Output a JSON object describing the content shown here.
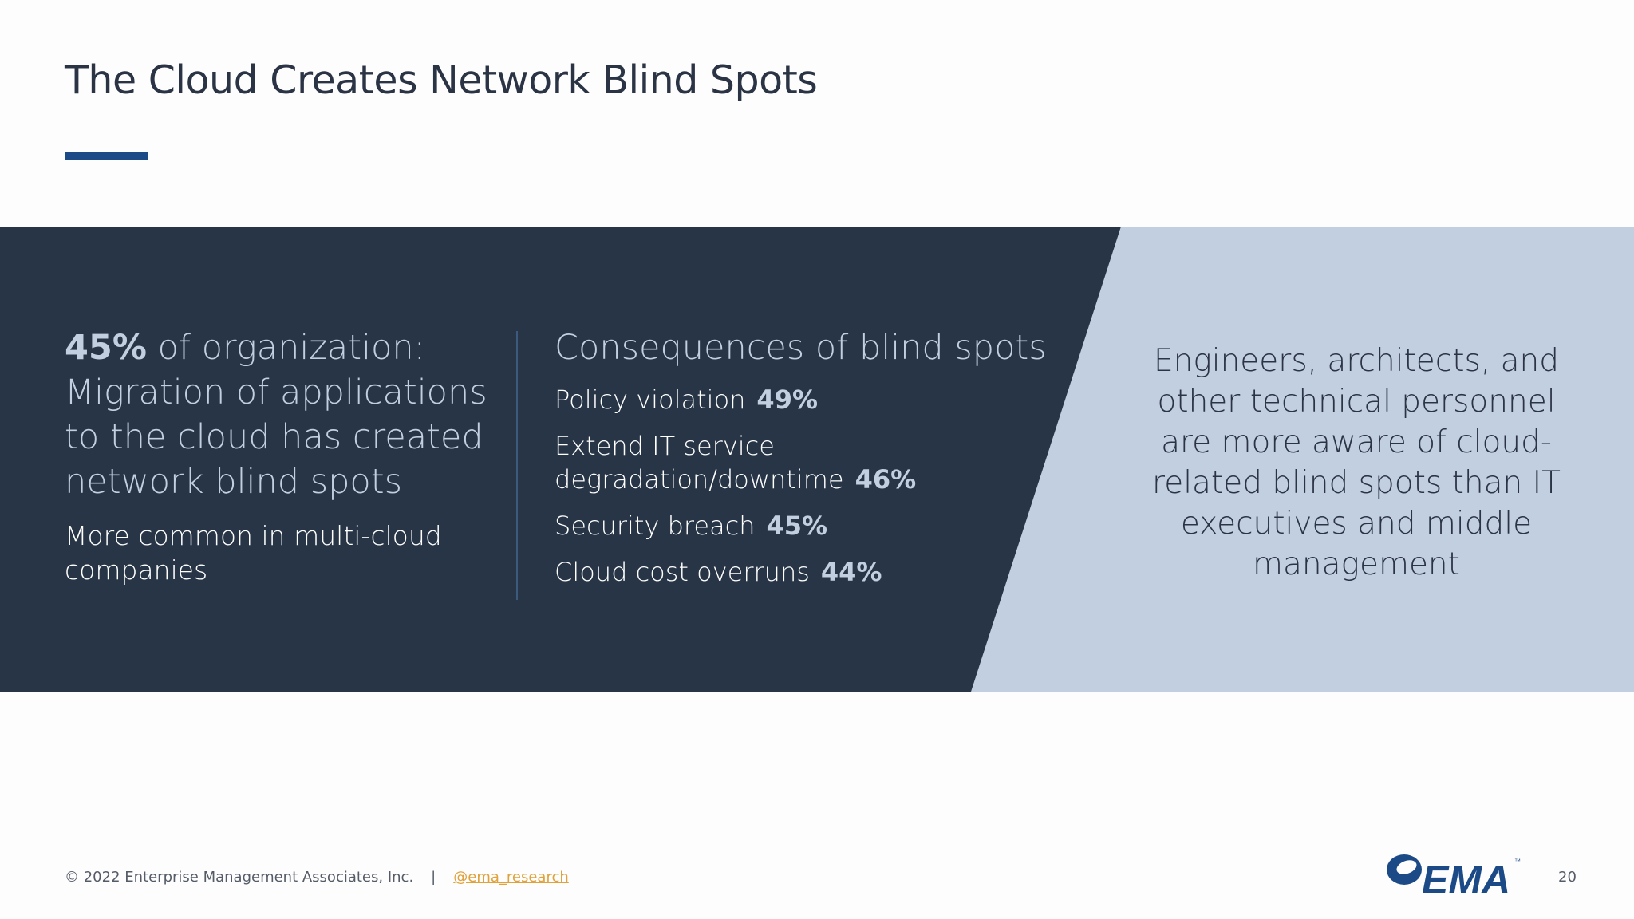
{
  "slide": {
    "title": "The Cloud Creates Network Blind Spots"
  },
  "left": {
    "stat_pct": "45%",
    "stat_text": " of organization: Migration of applications to the cloud has created network blind spots",
    "sub_text": "More common in multi-cloud companies"
  },
  "middle": {
    "heading": "Consequences of blind spots",
    "items": [
      {
        "label": "Policy violation",
        "value": "49%"
      },
      {
        "label": "Extend IT service degradation/downtime",
        "value": "46%"
      },
      {
        "label": "Security breach",
        "value": "45%"
      },
      {
        "label": "Cloud cost overruns",
        "value": "44%"
      }
    ]
  },
  "right": {
    "text": "Engineers, architects, and other technical personnel are more aware of cloud-related blind spots than IT executives and middle management"
  },
  "footer": {
    "copyright": "© 2022 Enterprise Management Associates, Inc.",
    "separator": "|",
    "handle": "@ema_research",
    "page_number": "20"
  },
  "logo": {
    "text": "EMA",
    "tm": "™"
  },
  "colors": {
    "dark_panel": "#273547",
    "light_panel": "#c2cfe0",
    "accent_blue": "#1b4a87",
    "link_orange": "#e0a23a"
  }
}
